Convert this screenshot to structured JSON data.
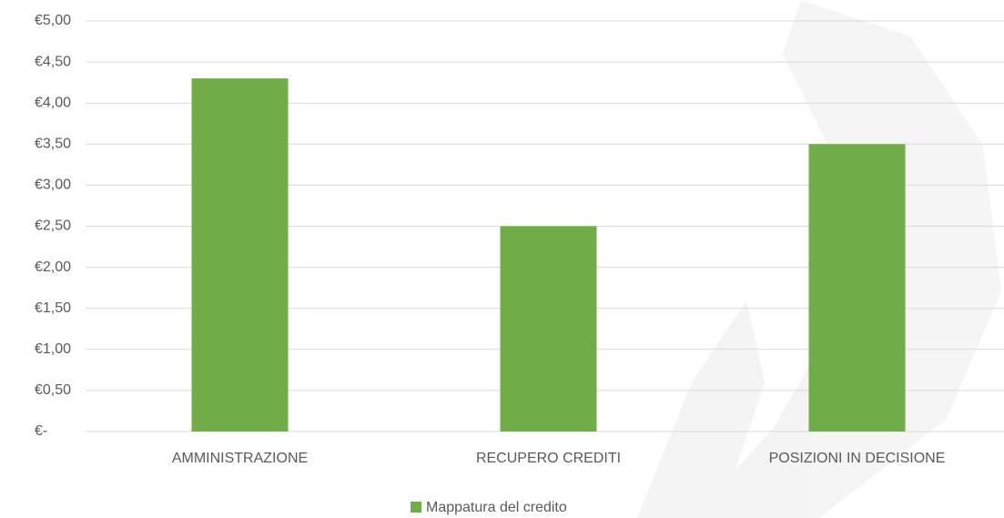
{
  "chart_data": {
    "type": "bar",
    "categories": [
      "AMMINISTRAZIONE",
      "RECUPERO CREDITI",
      "POSIZIONI IN DECISIONE"
    ],
    "series": [
      {
        "name": "Mappatura del credito",
        "color": "#70ad47",
        "values": [
          4.3,
          2.5,
          3.5
        ]
      }
    ],
    "ylim": [
      0,
      5
    ],
    "yticks": [
      {
        "value": 0,
        "label": "€-"
      },
      {
        "value": 0.5,
        "label": "€0,50"
      },
      {
        "value": 1,
        "label": "€1,00"
      },
      {
        "value": 1.5,
        "label": "€1,50"
      },
      {
        "value": 2,
        "label": "€2,00"
      },
      {
        "value": 2.5,
        "label": "€2,50"
      },
      {
        "value": 3,
        "label": "€3,00"
      },
      {
        "value": 3.5,
        "label": "€3,50"
      },
      {
        "value": 4,
        "label": "€4,00"
      },
      {
        "value": 4.5,
        "label": "€4,50"
      },
      {
        "value": 5,
        "label": "€5,00"
      }
    ],
    "grid": true,
    "legend": "bottom"
  }
}
